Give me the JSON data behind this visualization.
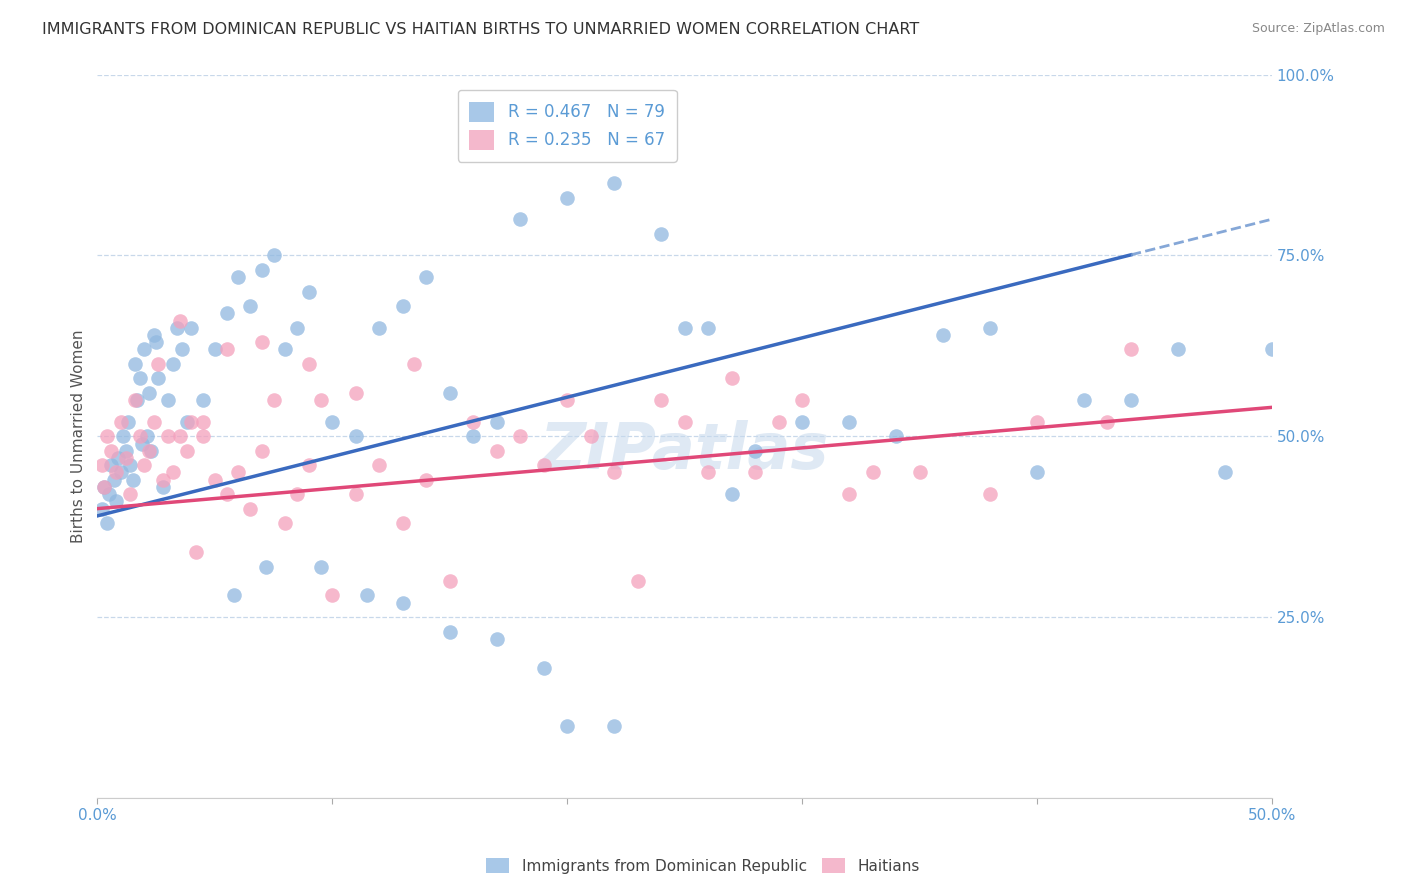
{
  "title": "IMMIGRANTS FROM DOMINICAN REPUBLIC VS HAITIAN BIRTHS TO UNMARRIED WOMEN CORRELATION CHART",
  "source": "Source: ZipAtlas.com",
  "ylabel": "Births to Unmarried Women",
  "legend_label1": "R = 0.467   N = 79",
  "legend_label2": "R = 0.235   N = 67",
  "legend_color1": "#a8c8e8",
  "legend_color2": "#f4b8cc",
  "dot_color1": "#90b8e0",
  "dot_color2": "#f4a0bc",
  "line_color1": "#3a6abf",
  "line_color2": "#e04878",
  "line_color1_dash": "#7098d0",
  "title_color": "#333333",
  "axis_color": "#5b9bd5",
  "grid_color": "#c8d8ea",
  "watermark": "ZIPatlas",
  "blue_dots_x": [
    0.2,
    0.3,
    0.4,
    0.5,
    0.6,
    0.7,
    0.8,
    0.9,
    1.0,
    1.1,
    1.2,
    1.3,
    1.4,
    1.5,
    1.6,
    1.7,
    1.8,
    1.9,
    2.0,
    2.1,
    2.2,
    2.3,
    2.4,
    2.5,
    2.6,
    2.8,
    3.0,
    3.2,
    3.4,
    3.6,
    3.8,
    4.0,
    4.5,
    5.0,
    5.5,
    6.0,
    6.5,
    7.0,
    7.5,
    8.0,
    8.5,
    9.0,
    10.0,
    11.0,
    12.0,
    13.0,
    14.0,
    15.0,
    16.0,
    17.0,
    18.0,
    20.0,
    22.0,
    24.0,
    25.0,
    26.0,
    27.0,
    28.0,
    30.0,
    32.0,
    34.0,
    36.0,
    38.0,
    40.0,
    42.0,
    44.0,
    46.0,
    48.0,
    50.0,
    20.0,
    22.0,
    15.0,
    17.0,
    19.0,
    13.0,
    11.5,
    9.5,
    7.2,
    5.8
  ],
  "blue_dots_y": [
    40,
    43,
    38,
    42,
    46,
    44,
    41,
    47,
    45,
    50,
    48,
    52,
    46,
    44,
    60,
    55,
    58,
    49,
    62,
    50,
    56,
    48,
    64,
    63,
    58,
    43,
    55,
    60,
    65,
    62,
    52,
    65,
    55,
    62,
    67,
    72,
    68,
    73,
    75,
    62,
    65,
    70,
    52,
    50,
    65,
    68,
    72,
    56,
    50,
    52,
    80,
    83,
    85,
    78,
    65,
    65,
    42,
    48,
    52,
    52,
    50,
    64,
    65,
    45,
    55,
    55,
    62,
    45,
    62,
    10,
    10,
    23,
    22,
    18,
    27,
    28,
    32,
    32,
    28
  ],
  "pink_dots_x": [
    0.2,
    0.3,
    0.4,
    0.6,
    0.8,
    1.0,
    1.2,
    1.4,
    1.6,
    1.8,
    2.0,
    2.2,
    2.4,
    2.6,
    2.8,
    3.0,
    3.2,
    3.5,
    3.8,
    4.0,
    4.2,
    4.5,
    5.0,
    5.5,
    6.0,
    6.5,
    7.0,
    7.5,
    8.0,
    8.5,
    9.0,
    9.5,
    10.0,
    11.0,
    12.0,
    13.0,
    14.0,
    15.0,
    17.0,
    19.0,
    21.0,
    23.0,
    25.0,
    27.0,
    30.0,
    35.0,
    40.0,
    44.0,
    3.5,
    4.5,
    5.5,
    7.0,
    9.0,
    11.0,
    13.5,
    16.0,
    18.0,
    20.0,
    22.0,
    24.0,
    26.0,
    29.0,
    33.0,
    38.0,
    43.0,
    28.0,
    32.0
  ],
  "pink_dots_y": [
    46,
    43,
    50,
    48,
    45,
    52,
    47,
    42,
    55,
    50,
    46,
    48,
    52,
    60,
    44,
    50,
    45,
    50,
    48,
    52,
    34,
    50,
    44,
    42,
    45,
    40,
    48,
    55,
    38,
    42,
    46,
    55,
    28,
    42,
    46,
    38,
    44,
    30,
    48,
    46,
    50,
    30,
    52,
    58,
    55,
    45,
    52,
    62,
    66,
    52,
    62,
    63,
    60,
    56,
    60,
    52,
    50,
    55,
    45,
    55,
    45,
    52,
    45,
    42,
    52,
    45,
    42
  ],
  "xlim": [
    0,
    50
  ],
  "ylim": [
    0,
    100
  ],
  "blue_trend_x0": 0,
  "blue_trend_y0": 39,
  "blue_trend_x1": 50,
  "blue_trend_y1": 80,
  "blue_solid_end_x": 44,
  "pink_trend_x0": 0,
  "pink_trend_y0": 40,
  "pink_trend_x1": 50,
  "pink_trend_y1": 54
}
